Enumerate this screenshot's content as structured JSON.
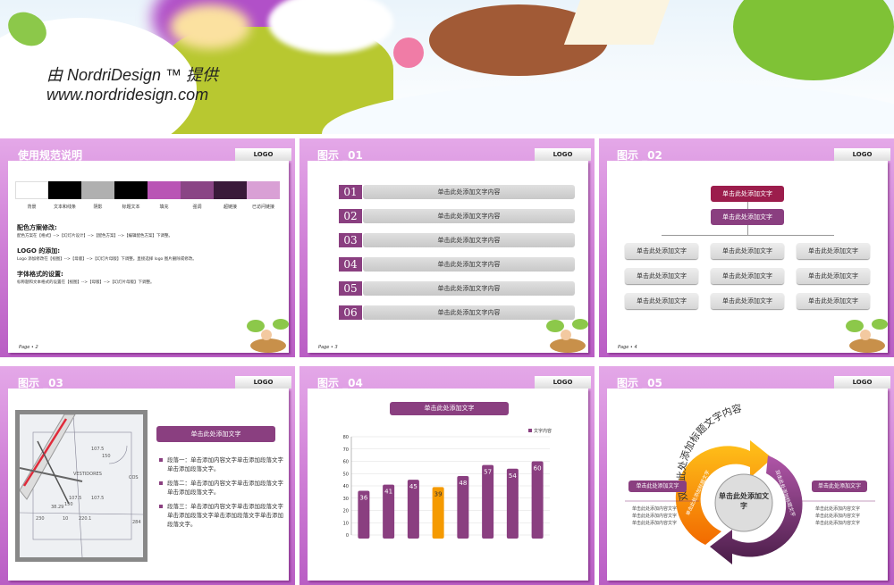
{
  "banner": {
    "line1": "由 NordriDesign ™ 提供",
    "line2": "www.nordridesign.com"
  },
  "logo_label": "LOGO",
  "slides": [
    {
      "title": "使用规范说明",
      "page": "Page • 2",
      "swatches": [
        {
          "label": "背景",
          "color": "#ffffff"
        },
        {
          "label": "文本和线条",
          "color": "#000000"
        },
        {
          "label": "阴影",
          "color": "#b0b0b0"
        },
        {
          "label": "标题文本",
          "color": "#000000"
        },
        {
          "label": "填充",
          "color": "#b955b5"
        },
        {
          "label": "强调",
          "color": "#8a4585"
        },
        {
          "label": "超链接",
          "color": "#3a1a3a"
        },
        {
          "label": "已访问链接",
          "color": "#d9a0d5"
        }
      ],
      "sections": [
        {
          "heading": "配色方案修改:",
          "text": "配色方案在【格式】-->【幻灯片设计】-->【配色方案】-->【编辑配色方案】下调整。"
        },
        {
          "heading": "LOGO 的添加:",
          "text": "Logo 添加修改在【视图】-->【母版】-->【幻灯片母版】下调整。直接选择 logo 图片删除或修改。"
        },
        {
          "heading": "字体格式的设置:",
          "text": "标称题和文本格式的设置在【视图】-->【母版】-->【幻灯片母版】下调整。"
        }
      ]
    },
    {
      "title": "图示 _01",
      "page": "Page • 3",
      "items": [
        {
          "num": "01",
          "text": "单击此处添加文字内容"
        },
        {
          "num": "02",
          "text": "单击此处添加文字内容"
        },
        {
          "num": "03",
          "text": "单击此处添加文字内容"
        },
        {
          "num": "04",
          "text": "单击此处添加文字内容"
        },
        {
          "num": "05",
          "text": "单击此处添加文字内容"
        },
        {
          "num": "06",
          "text": "单击此处添加文字内容"
        }
      ]
    },
    {
      "title": "图示 _02",
      "page": "Page • 4",
      "top1": "单击此处添加文字",
      "top2": "单击此处添加文字",
      "cell": "单击此处添加文字"
    },
    {
      "title": "图示 _03",
      "header": "单击此处添加文字",
      "paragraphs": [
        "段落一：单击添加内容文字单击添加段落文字单击添加段落文字。",
        "段落二：单击添加内容文字单击添加段落文字单击添加段落文字。",
        "段落三：单击添加内容文字单击添加段落文字单击添加段落文字单击添加段落文字单击添加段落文字。"
      ],
      "photo_labels": [
        "107.5",
        "150",
        "VESTIDORES",
        "107.5",
        "107.5",
        "38.29",
        "150",
        "230",
        "10",
        "220.1",
        "284",
        "COS"
      ]
    },
    {
      "title": "图示 _04",
      "header": "单击此处添加文字"
    },
    {
      "title": "图示 _05",
      "arc_title": "双击此处添加标题文字内容",
      "center": "单击此处添加文字",
      "left_arrow": "单击此处添加标题文字",
      "right_arrow": "双击此处添加标题文字",
      "left_box": "单击此处添加文字",
      "right_box": "单击此处添加文字",
      "left_lines": [
        "单击此处添加内容文字",
        "单击此处添加内容文字",
        "单击此处添加内容文字"
      ],
      "right_lines": [
        "单击此处添加内容文字",
        "单击此处添加内容文字",
        "单击此处添加内容文字"
      ]
    }
  ],
  "chart_data": {
    "type": "bar",
    "categories": [
      "1",
      "2",
      "3",
      "4",
      "5",
      "6",
      "7",
      "8"
    ],
    "series": [
      {
        "name": "文字内容",
        "values": [
          36,
          41,
          45,
          39,
          48,
          57,
          54,
          60
        ]
      }
    ],
    "highlight_index": 3,
    "colors": {
      "bar": "#8a3f80",
      "highlight": "#f59a00"
    },
    "ylim": [
      0,
      80
    ],
    "yticks": [
      0,
      10,
      20,
      30,
      40,
      50,
      60,
      70,
      80
    ],
    "grid": true,
    "legend": "top-right"
  }
}
